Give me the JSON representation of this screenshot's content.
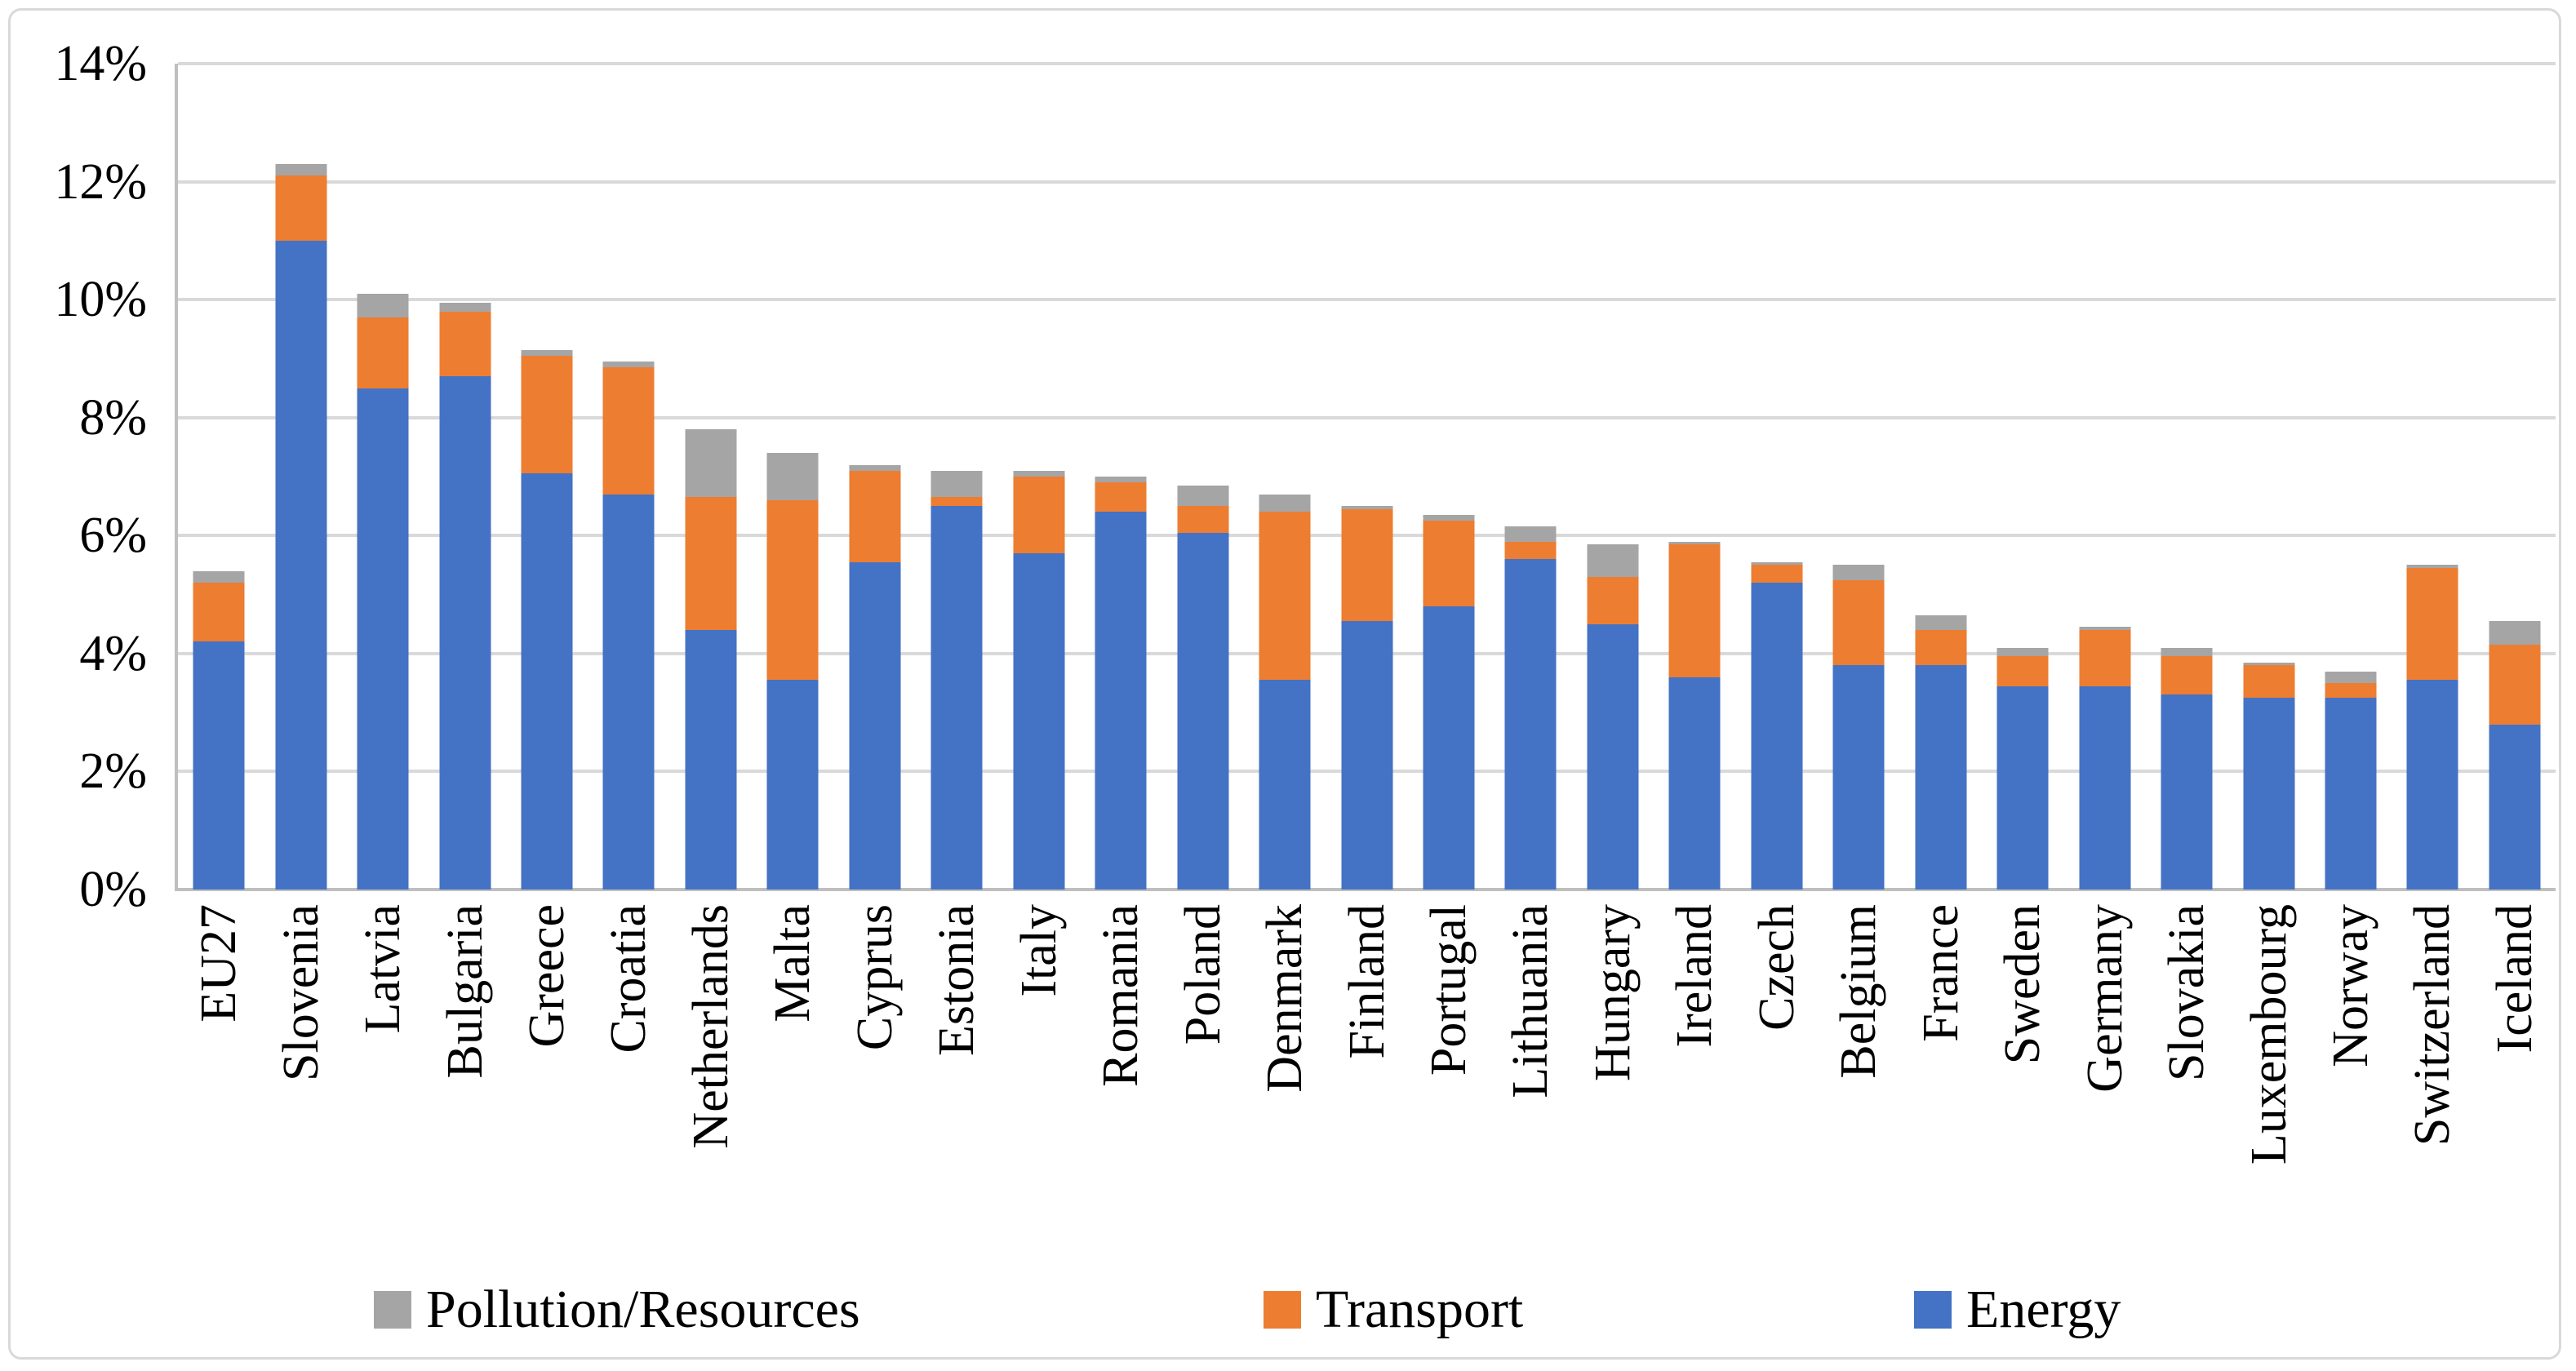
{
  "chart_data": {
    "type": "bar",
    "stacked": true,
    "orientation": "vertical",
    "title": "",
    "xlabel": "",
    "ylabel": "",
    "ylim": [
      0,
      14
    ],
    "ytick_step": 2,
    "ytick_labels": [
      "0%",
      "2%",
      "4%",
      "6%",
      "8%",
      "10%",
      "12%",
      "14%"
    ],
    "grid": true,
    "legend_position": "bottom",
    "legend_order": [
      "Pollution/Resources",
      "Transport",
      "Energy"
    ],
    "categories": [
      "EU27",
      "Slovenia",
      "Latvia",
      "Bulgaria",
      "Greece",
      "Croatia",
      "Netherlands",
      "Malta",
      "Cyprus",
      "Estonia",
      "Italy",
      "Romania",
      "Poland",
      "Denmark",
      "Finland",
      "Portugal",
      "Lithuania",
      "Hungary",
      "Ireland",
      "Czech",
      "Belgium",
      "France",
      "Sweden",
      "Germany",
      "Slovakia",
      "Luxembourg",
      "Norway",
      "Switzerland",
      "Iceland"
    ],
    "series": [
      {
        "name": "Energy",
        "color": "#4472C4",
        "values": [
          4.2,
          11.0,
          8.5,
          8.7,
          7.05,
          6.7,
          4.4,
          3.55,
          5.55,
          6.5,
          5.7,
          6.4,
          6.05,
          3.55,
          4.55,
          4.8,
          5.6,
          4.5,
          3.6,
          5.2,
          3.8,
          3.8,
          3.45,
          3.45,
          3.3,
          3.25,
          3.25,
          3.55,
          2.8
        ]
      },
      {
        "name": "Transport",
        "color": "#ED7D31",
        "values": [
          1.0,
          1.1,
          1.2,
          1.1,
          2.0,
          2.15,
          2.25,
          3.05,
          1.55,
          0.15,
          1.3,
          0.5,
          0.45,
          2.85,
          1.9,
          1.45,
          0.3,
          0.8,
          2.25,
          0.3,
          1.45,
          0.6,
          0.5,
          0.95,
          0.65,
          0.55,
          0.25,
          1.9,
          1.35
        ]
      },
      {
        "name": "Pollution/Resources",
        "color": "#A5A5A5",
        "values": [
          0.2,
          0.2,
          0.4,
          0.15,
          0.1,
          0.1,
          1.15,
          0.8,
          0.1,
          0.45,
          0.1,
          0.1,
          0.35,
          0.3,
          0.05,
          0.1,
          0.25,
          0.55,
          0.05,
          0.05,
          0.25,
          0.25,
          0.15,
          0.05,
          0.15,
          0.05,
          0.2,
          0.05,
          0.4
        ]
      }
    ],
    "colors": {
      "energy": "#4472C4",
      "transport": "#ED7D31",
      "pollution_resources": "#A5A5A5",
      "gridline": "#D9D9D9",
      "axis_line": "#BFBFBF",
      "text": "#000000",
      "frame_border": "#D9D9D9",
      "background": "#FFFFFF"
    },
    "legend_items_x": [
      458,
      1548,
      2345
    ]
  }
}
